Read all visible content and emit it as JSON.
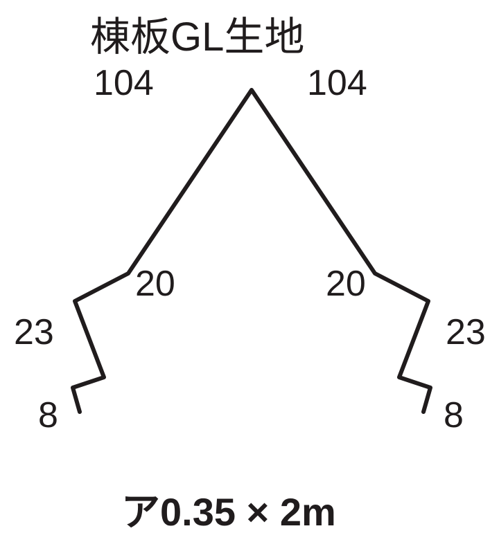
{
  "title": "棟板GL生地",
  "footer": "ア0.35 × 2m",
  "dimensions": {
    "top_left": "104",
    "top_right": "104",
    "mid_left": "20",
    "mid_right": "20",
    "side_left": "23",
    "side_right": "23",
    "bottom_left": "8",
    "bottom_right": "8"
  },
  "style": {
    "background_color": "#ffffff",
    "stroke_color": "#201c1d",
    "text_color": "#201c1d",
    "stroke_width": 6,
    "title_fontsize": 58,
    "dim_fontsize": 52,
    "footer_fontsize": 56
  },
  "profile": {
    "points": [
      [
        115,
        595
      ],
      [
        105,
        560
      ],
      [
        150,
        545
      ],
      [
        108,
        435
      ],
      [
        185,
        395
      ],
      [
        363,
        130
      ],
      [
        541,
        395
      ],
      [
        618,
        435
      ],
      [
        576,
        545
      ],
      [
        621,
        560
      ],
      [
        611,
        595
      ]
    ]
  }
}
